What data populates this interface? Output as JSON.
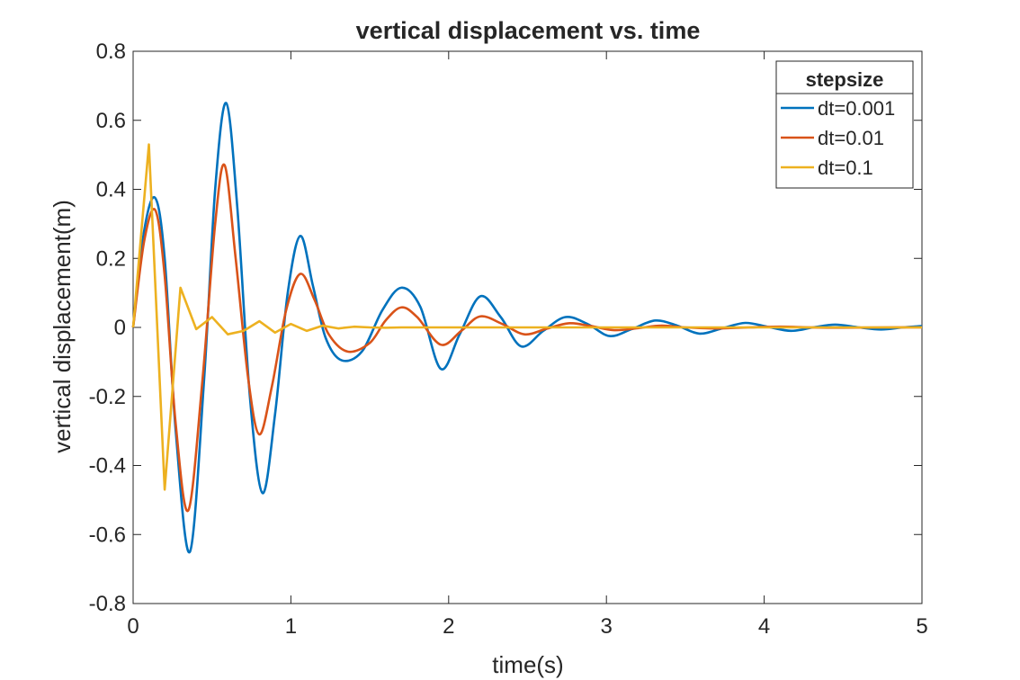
{
  "chart_data": {
    "type": "line",
    "title": "vertical displacement vs. time",
    "xlabel": "time(s)",
    "ylabel": "vertical displacement(m)",
    "xlim": [
      0,
      5
    ],
    "ylim": [
      -0.8,
      0.8
    ],
    "xticks": [
      0,
      1,
      2,
      3,
      4,
      5
    ],
    "xtick_labels": [
      "0",
      "1",
      "2",
      "3",
      "4",
      "5"
    ],
    "yticks": [
      -0.8,
      -0.6,
      -0.4,
      -0.2,
      0,
      0.2,
      0.4,
      0.6,
      0.8
    ],
    "ytick_labels": [
      "-0.8",
      "-0.6",
      "-0.4",
      "-0.2",
      "0",
      "0.2",
      "0.4",
      "0.6",
      "0.8"
    ],
    "grid": false,
    "legend": {
      "title": "stepsize",
      "placement": "top-right"
    },
    "series": [
      {
        "name": "dt=0.001",
        "color": "#0072BD",
        "x": [
          0,
          0.07,
          0.14,
          0.2,
          0.27,
          0.36,
          0.45,
          0.52,
          0.59,
          0.66,
          0.74,
          0.82,
          0.9,
          0.98,
          1.06,
          1.14,
          1.22,
          1.32,
          1.45,
          1.58,
          1.7,
          1.82,
          1.95,
          2.07,
          2.2,
          2.33,
          2.46,
          2.6,
          2.74,
          2.88,
          3.02,
          3.16,
          3.31,
          3.45,
          3.59,
          3.74,
          3.88,
          4.02,
          4.17,
          4.31,
          4.45,
          4.6,
          4.74,
          4.88,
          5.0
        ],
        "y": [
          0,
          0.28,
          0.375,
          0.2,
          -0.3,
          -0.65,
          -0.15,
          0.4,
          0.65,
          0.35,
          -0.2,
          -0.48,
          -0.25,
          0.1,
          0.265,
          0.12,
          -0.03,
          -0.095,
          -0.07,
          0.05,
          0.115,
          0.06,
          -0.12,
          -0.02,
          0.09,
          0.03,
          -0.055,
          -0.01,
          0.03,
          0.01,
          -0.025,
          -0.005,
          0.02,
          0.005,
          -0.018,
          -0.002,
          0.013,
          0.002,
          -0.01,
          0.0,
          0.008,
          0.0,
          -0.006,
          0.0,
          0.004
        ]
      },
      {
        "name": "dt=0.01",
        "color": "#D95319",
        "x": [
          0,
          0.07,
          0.14,
          0.2,
          0.27,
          0.35,
          0.44,
          0.52,
          0.58,
          0.65,
          0.73,
          0.8,
          0.88,
          0.97,
          1.06,
          1.15,
          1.24,
          1.36,
          1.5,
          1.6,
          1.7,
          1.8,
          1.95,
          2.08,
          2.2,
          2.34,
          2.48,
          2.62,
          2.76,
          2.9,
          3.05,
          3.2,
          3.35,
          3.5,
          3.7,
          3.9,
          4.1,
          4.3,
          4.5,
          4.75,
          5.0
        ],
        "y": [
          0,
          0.25,
          0.34,
          0.15,
          -0.28,
          -0.53,
          -0.15,
          0.3,
          0.47,
          0.2,
          -0.15,
          -0.31,
          -0.17,
          0.05,
          0.155,
          0.08,
          -0.02,
          -0.07,
          -0.045,
          0.02,
          0.058,
          0.03,
          -0.05,
          -0.01,
          0.032,
          0.01,
          -0.02,
          -0.004,
          0.012,
          0.004,
          -0.008,
          -0.002,
          0.005,
          0.0,
          -0.003,
          0.0,
          0.002,
          0.0,
          -0.001,
          0.0,
          0.0
        ]
      },
      {
        "name": "dt=0.1",
        "color": "#EDB120",
        "x": [
          0,
          0.1,
          0.2,
          0.3,
          0.4,
          0.5,
          0.6,
          0.7,
          0.8,
          0.9,
          1.0,
          1.1,
          1.2,
          1.3,
          1.4,
          1.5,
          1.6,
          1.7,
          1.8,
          1.9,
          2.0,
          2.1,
          2.2,
          2.3,
          2.4,
          2.5,
          2.6,
          2.7,
          2.8,
          2.9,
          3.0,
          3.1,
          3.2,
          3.3,
          3.4,
          3.5,
          3.6,
          3.7,
          3.8,
          3.9,
          4.0,
          4.1,
          4.2,
          4.3,
          4.4,
          4.5,
          4.6,
          4.7,
          4.8,
          4.9,
          5.0
        ],
        "y": [
          0,
          0.53,
          -0.47,
          0.115,
          -0.005,
          0.03,
          -0.02,
          -0.01,
          0.018,
          -0.015,
          0.01,
          -0.01,
          0.005,
          -0.003,
          0.002,
          0.0,
          -0.001,
          0.0,
          0.0,
          0.0,
          0.0,
          0.0,
          0.0,
          0.0,
          0.0,
          0.0,
          0.0,
          0.0,
          0.0,
          0.0,
          0.0,
          0.0,
          0.0,
          0.0,
          0.0,
          0.0,
          0.0,
          0.0,
          0.0,
          0.0,
          0.0,
          0.0,
          0.0,
          0.0,
          0.0,
          0.0,
          0.0,
          0.0,
          0.0,
          0.0,
          0.0
        ]
      }
    ]
  }
}
